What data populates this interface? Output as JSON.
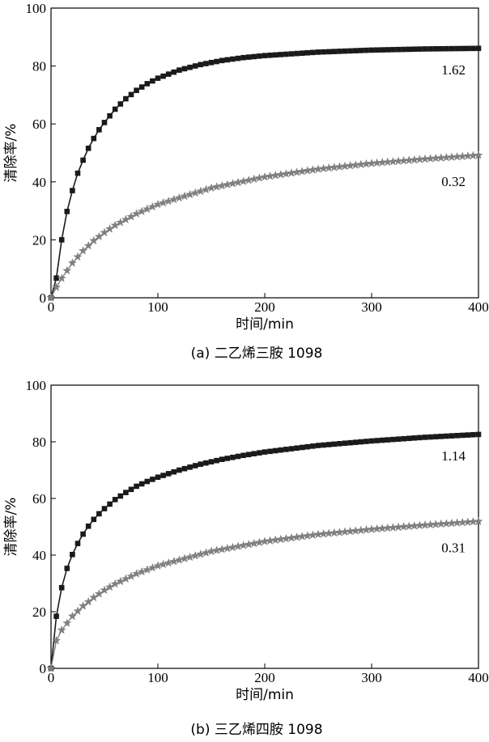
{
  "chart_data": [
    {
      "type": "line",
      "caption": "(a) 二乙烯三胺 1098",
      "xlabel": "时间/min",
      "ylabel": "清除率/%",
      "xlim": [
        0,
        400
      ],
      "ylim": [
        0,
        100
      ],
      "xticks": [
        "0",
        "100",
        "200",
        "300",
        "400"
      ],
      "yticks": [
        "0",
        "20",
        "40",
        "60",
        "80",
        "100"
      ],
      "grid": false,
      "series": [
        {
          "label": "1.62",
          "marker": "square",
          "color": "#1a1a1a",
          "k": 1.62,
          "ymax": 86.5,
          "x": [
            0,
            5,
            10,
            15,
            20,
            25,
            30,
            35,
            40,
            45,
            50,
            60,
            70,
            80,
            90,
            100,
            120,
            140,
            160,
            180,
            200,
            250,
            300,
            350,
            400
          ],
          "y": [
            0,
            6.8,
            20,
            29.8,
            37,
            43,
            47.5,
            51.6,
            55,
            58,
            60.5,
            65.1,
            68.7,
            71.6,
            73.9,
            75.8,
            78.6,
            80.5,
            81.9,
            82.9,
            83.6,
            84.8,
            85.5,
            85.9,
            86.1
          ]
        },
        {
          "label": "0.32",
          "marker": "star",
          "color": "#808080",
          "k": 0.32,
          "ymax": 58.6,
          "x": [
            0,
            5,
            10,
            20,
            30,
            40,
            50,
            60,
            80,
            100,
            150,
            200,
            250,
            300,
            350,
            400
          ],
          "y": [
            0,
            3.6,
            6.7,
            12,
            16.2,
            19.7,
            22.5,
            25,
            29,
            32.2,
            37.9,
            41.7,
            44.4,
            46.4,
            47.9,
            49.2
          ]
        }
      ]
    },
    {
      "type": "line",
      "caption": "(b) 三乙烯四胺 1098",
      "xlabel": "时间/min",
      "ylabel": "清除率/%",
      "xlim": [
        0,
        400
      ],
      "ylim": [
        0,
        100
      ],
      "xticks": [
        "0",
        "100",
        "200",
        "300",
        "400"
      ],
      "yticks": [
        "0",
        "20",
        "40",
        "60",
        "80",
        "100"
      ],
      "grid": false,
      "series": [
        {
          "label": "1.14",
          "marker": "square",
          "color": "#1a1a1a",
          "k": 1.14,
          "ymax": 89.5,
          "x": [
            0,
            5,
            10,
            15,
            20,
            25,
            30,
            35,
            40,
            45,
            50,
            60,
            70,
            80,
            90,
            100,
            120,
            140,
            160,
            180,
            200,
            250,
            300,
            350,
            400
          ],
          "y": [
            0,
            18.4,
            28.5,
            35.3,
            40.2,
            44.1,
            47.4,
            50.2,
            52.6,
            54.6,
            56.4,
            59.6,
            62.1,
            64.3,
            66,
            67.5,
            70,
            72.1,
            73.8,
            75.2,
            76.4,
            78.7,
            80.3,
            81.6,
            82.6
          ]
        },
        {
          "label": "0.31",
          "marker": "star",
          "color": "#808080",
          "k": 0.31,
          "ymax": 60.3,
          "x": [
            0,
            5,
            10,
            20,
            30,
            40,
            50,
            60,
            80,
            100,
            150,
            200,
            250,
            300,
            350,
            400
          ],
          "y": [
            0,
            9.8,
            13.5,
            18.4,
            22,
            25,
            27.6,
            29.8,
            33.4,
            36.2,
            41.3,
            44.8,
            47.3,
            49.1,
            50.6,
            51.9
          ]
        }
      ]
    }
  ]
}
